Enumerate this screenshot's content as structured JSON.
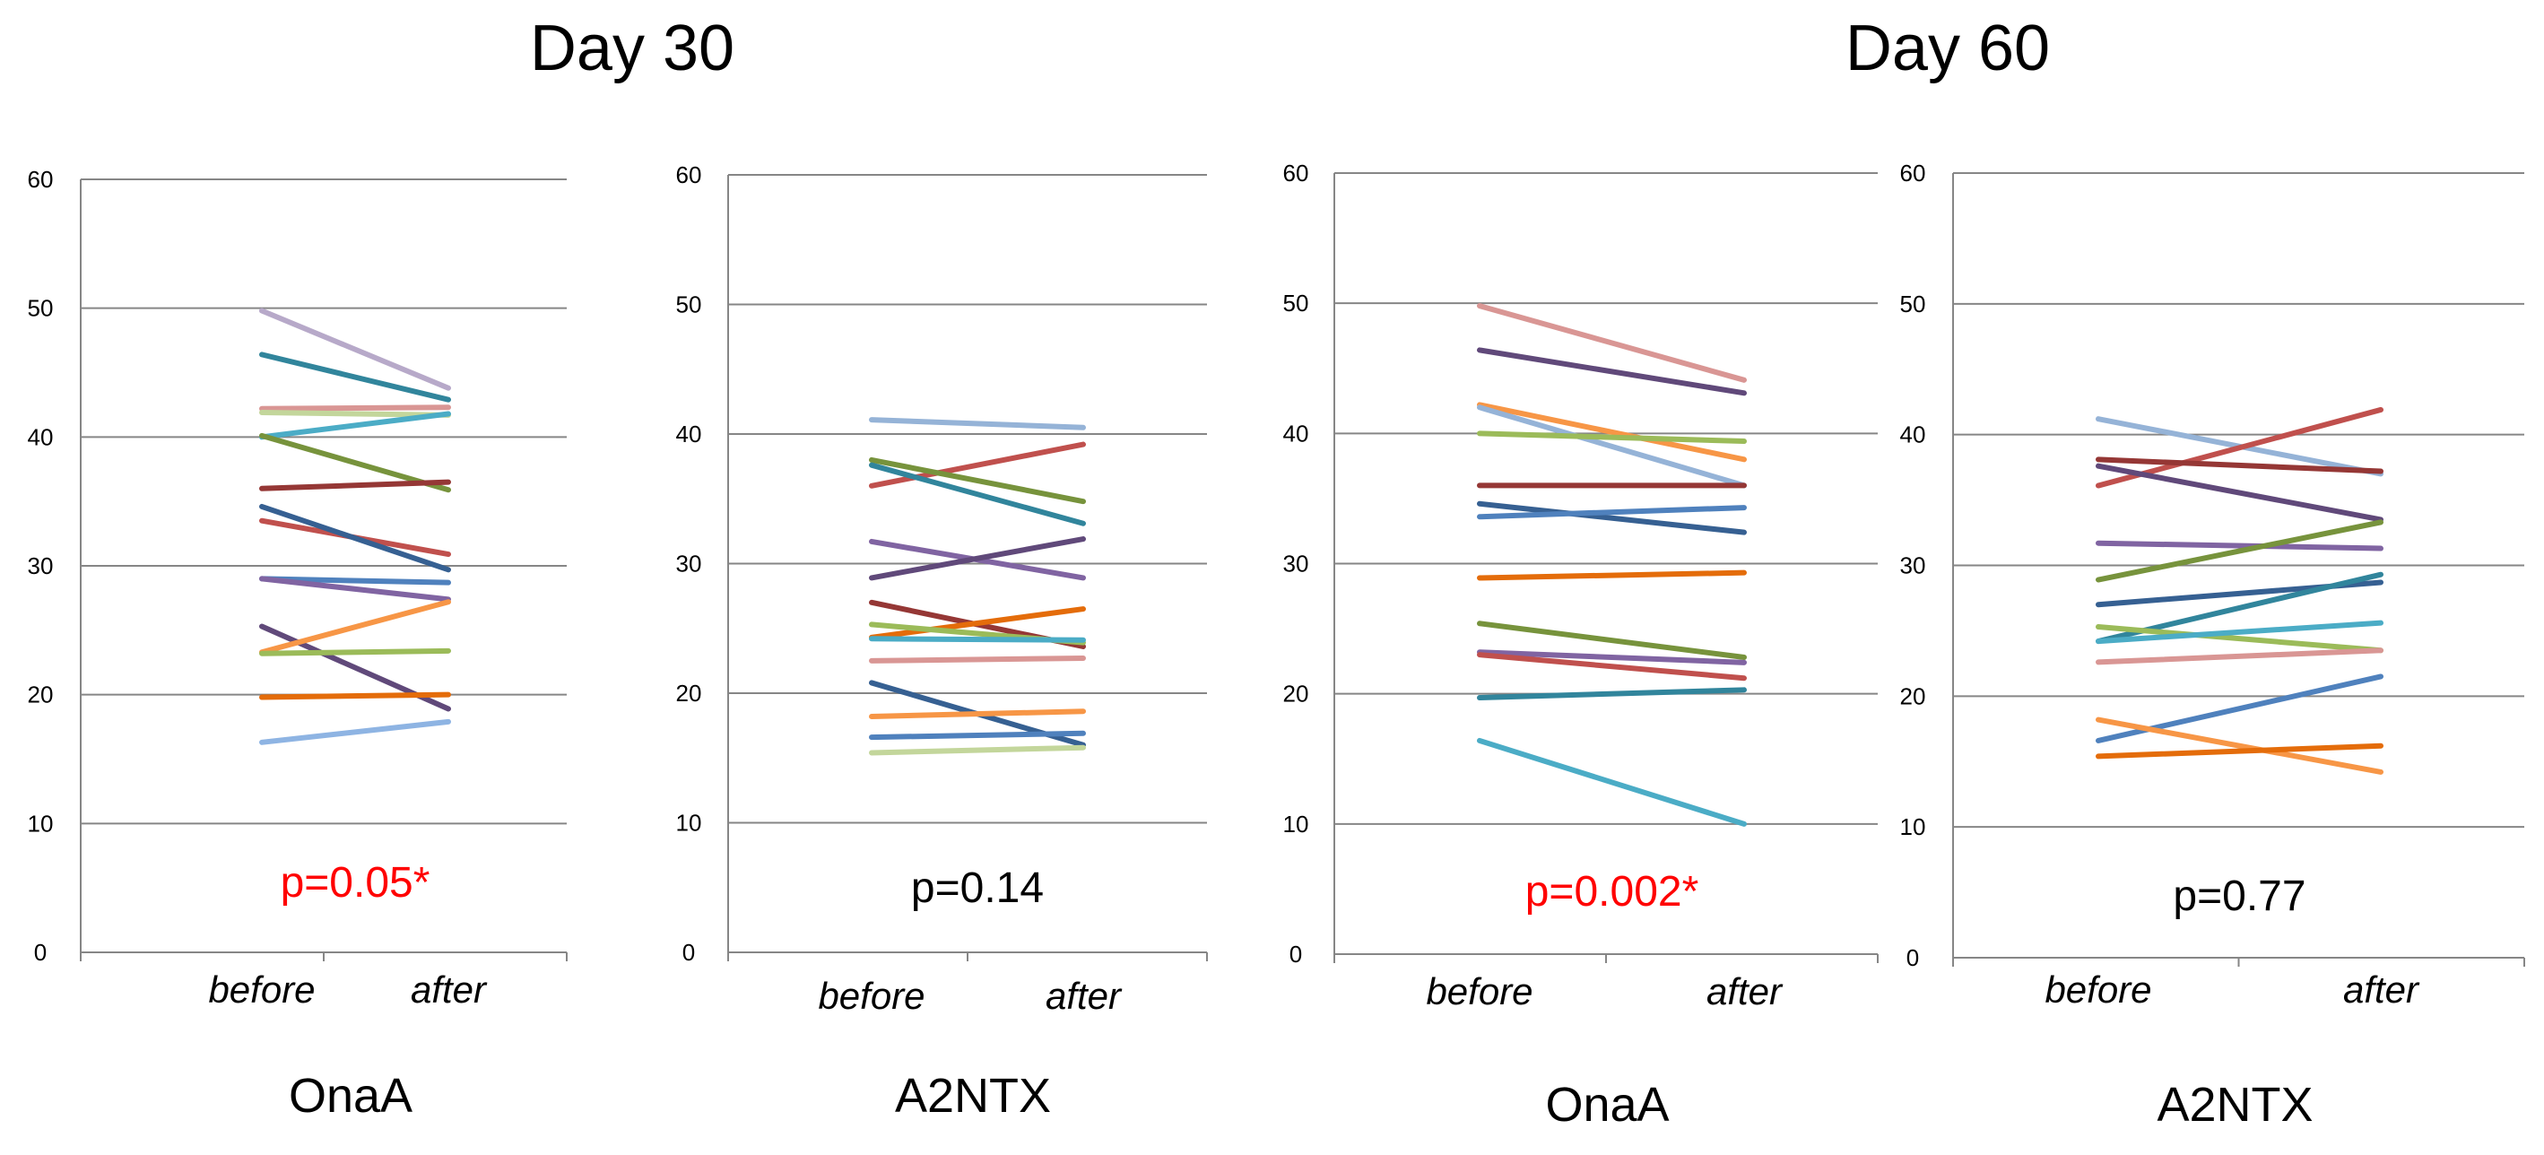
{
  "figure": {
    "group_titles": [
      "Day 30",
      "Day 60"
    ]
  },
  "chart_data": [
    {
      "type": "line",
      "group": "Day 30",
      "title": "OnaA",
      "categories": [
        "before",
        "after"
      ],
      "ylim": [
        0,
        60
      ],
      "yticks": [
        0,
        10,
        20,
        30,
        40,
        50,
        60
      ],
      "grid": true,
      "annotation": "p=0.05*",
      "annotation_color": "#ff0000",
      "series": [
        {
          "color": "#b7a9c9",
          "values": [
            49.8,
            43.8
          ]
        },
        {
          "color": "#31859c",
          "values": [
            46.4,
            42.9
          ]
        },
        {
          "color": "#d99694",
          "values": [
            42.2,
            42.3
          ]
        },
        {
          "color": "#c3d69b",
          "values": [
            41.9,
            41.7
          ]
        },
        {
          "color": "#4bacc6",
          "values": [
            40.0,
            41.8
          ]
        },
        {
          "color": "#77933c",
          "values": [
            40.1,
            35.9
          ]
        },
        {
          "color": "#953735",
          "values": [
            36.0,
            36.5
          ]
        },
        {
          "color": "#c0504d",
          "values": [
            33.5,
            30.9
          ]
        },
        {
          "color": "#366092",
          "values": [
            34.6,
            29.7
          ]
        },
        {
          "color": "#4f81bd",
          "values": [
            29.0,
            28.7
          ]
        },
        {
          "color": "#8064a2",
          "values": [
            29.0,
            27.4
          ]
        },
        {
          "color": "#60497a",
          "values": [
            25.3,
            18.9
          ]
        },
        {
          "color": "#f79646",
          "values": [
            23.3,
            27.2
          ]
        },
        {
          "color": "#9bbb59",
          "values": [
            23.2,
            23.4
          ]
        },
        {
          "color": "#e46c0a",
          "values": [
            19.8,
            20.0
          ]
        },
        {
          "color": "#8eb4e3",
          "values": [
            16.3,
            17.9
          ]
        }
      ]
    },
    {
      "type": "line",
      "group": "Day 30",
      "title": "A2NTX",
      "categories": [
        "before",
        "after"
      ],
      "ylim": [
        0,
        60
      ],
      "yticks": [
        0,
        10,
        20,
        30,
        40,
        50,
        60
      ],
      "grid": true,
      "annotation": "p=0.14",
      "annotation_color": "#000000",
      "series": [
        {
          "color": "#95b3d7",
          "values": [
            41.1,
            40.5
          ]
        },
        {
          "color": "#c0504d",
          "values": [
            36.0,
            39.2
          ]
        },
        {
          "color": "#77933c",
          "values": [
            38.0,
            34.8
          ]
        },
        {
          "color": "#31859c",
          "values": [
            37.6,
            33.1
          ]
        },
        {
          "color": "#8064a2",
          "values": [
            31.7,
            28.9
          ]
        },
        {
          "color": "#60497a",
          "values": [
            28.9,
            31.9
          ]
        },
        {
          "color": "#953735",
          "values": [
            27.0,
            23.6
          ]
        },
        {
          "color": "#e46c0a",
          "values": [
            24.3,
            26.5
          ]
        },
        {
          "color": "#9bbb59",
          "values": [
            25.3,
            23.9
          ]
        },
        {
          "color": "#4bacc6",
          "values": [
            24.2,
            24.1
          ]
        },
        {
          "color": "#d99694",
          "values": [
            22.5,
            22.7
          ]
        },
        {
          "color": "#366092",
          "values": [
            20.8,
            16.0
          ]
        },
        {
          "color": "#f79646",
          "values": [
            18.2,
            18.6
          ]
        },
        {
          "color": "#4f81bd",
          "values": [
            16.6,
            16.9
          ]
        },
        {
          "color": "#c3d69b",
          "values": [
            15.4,
            15.8
          ]
        }
      ]
    },
    {
      "type": "line",
      "group": "Day 60",
      "title": "OnaA",
      "categories": [
        "before",
        "after"
      ],
      "ylim": [
        0,
        60
      ],
      "yticks": [
        0,
        10,
        20,
        30,
        40,
        50,
        60
      ],
      "grid": true,
      "annotation": "p=0.002*",
      "annotation_color": "#ff0000",
      "series": [
        {
          "color": "#d99694",
          "values": [
            49.8,
            44.1
          ]
        },
        {
          "color": "#60497a",
          "values": [
            46.4,
            43.1
          ]
        },
        {
          "color": "#f79646",
          "values": [
            42.2,
            38.0
          ]
        },
        {
          "color": "#95b3d7",
          "values": [
            42.0,
            36.0
          ]
        },
        {
          "color": "#9bbb59",
          "values": [
            40.0,
            39.4
          ]
        },
        {
          "color": "#953735",
          "values": [
            36.0,
            36.0
          ]
        },
        {
          "color": "#366092",
          "values": [
            34.6,
            32.4
          ]
        },
        {
          "color": "#4f81bd",
          "values": [
            33.6,
            34.3
          ]
        },
        {
          "color": "#e46c0a",
          "values": [
            28.9,
            29.3
          ]
        },
        {
          "color": "#77933c",
          "values": [
            25.4,
            22.8
          ]
        },
        {
          "color": "#8064a2",
          "values": [
            23.2,
            22.4
          ]
        },
        {
          "color": "#c0504d",
          "values": [
            23.0,
            21.2
          ]
        },
        {
          "color": "#31859c",
          "values": [
            19.7,
            20.3
          ]
        },
        {
          "color": "#4bacc6",
          "values": [
            16.4,
            10.0
          ]
        }
      ]
    },
    {
      "type": "line",
      "group": "Day 60",
      "title": "A2NTX",
      "categories": [
        "before",
        "after"
      ],
      "ylim": [
        0,
        60
      ],
      "yticks": [
        0,
        10,
        20,
        30,
        40,
        50,
        60
      ],
      "grid": true,
      "annotation": "p=0.77",
      "annotation_color": "#000000",
      "series": [
        {
          "color": "#95b3d7",
          "values": [
            41.2,
            37.0
          ]
        },
        {
          "color": "#c0504d",
          "values": [
            36.1,
            41.9
          ]
        },
        {
          "color": "#953735",
          "values": [
            38.1,
            37.2
          ]
        },
        {
          "color": "#60497a",
          "values": [
            37.6,
            33.5
          ]
        },
        {
          "color": "#8064a2",
          "values": [
            31.7,
            31.3
          ]
        },
        {
          "color": "#77933c",
          "values": [
            28.9,
            33.3
          ]
        },
        {
          "color": "#366092",
          "values": [
            27.0,
            28.7
          ]
        },
        {
          "color": "#31859c",
          "values": [
            24.2,
            29.3
          ]
        },
        {
          "color": "#9bbb59",
          "values": [
            25.3,
            23.5
          ]
        },
        {
          "color": "#4bacc6",
          "values": [
            24.2,
            25.6
          ]
        },
        {
          "color": "#d99694",
          "values": [
            22.6,
            23.5
          ]
        },
        {
          "color": "#4f81bd",
          "values": [
            16.6,
            21.5
          ]
        },
        {
          "color": "#f79646",
          "values": [
            18.2,
            14.2
          ]
        },
        {
          "color": "#e46c0a",
          "values": [
            15.4,
            16.2
          ]
        }
      ]
    }
  ]
}
